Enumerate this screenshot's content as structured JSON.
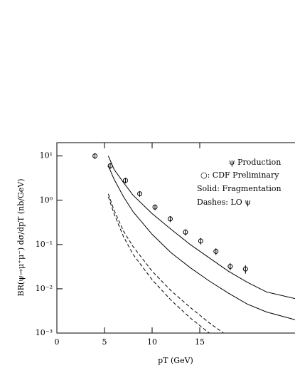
{
  "chart_data": {
    "type": "line",
    "x_label": "pT (GeV)",
    "y_label": "BR(ψ→μ⁺μ⁻)  dσ/dpT (nb/GeV)",
    "annotations": [
      "ψ Production",
      "○: CDF Preliminary",
      "Solid: Fragmentation",
      "Dashes: LO ψ"
    ],
    "xlim": [
      0,
      25
    ],
    "xticks": [
      0,
      5,
      10,
      15
    ],
    "ylim": [
      0.001,
      20
    ],
    "y_log": true,
    "yticks": [
      {
        "value": 10,
        "label": "10¹"
      },
      {
        "value": 1,
        "label": "10⁰"
      },
      {
        "value": 0.1,
        "label": "10⁻¹"
      },
      {
        "value": 0.01,
        "label": "10⁻²"
      },
      {
        "value": 0.001,
        "label": "10⁻³"
      }
    ],
    "color": "#000000",
    "points": {
      "x": [
        4.0,
        5.6,
        7.2,
        8.7,
        10.3,
        11.9,
        13.5,
        15.1,
        16.7,
        18.2,
        19.8
      ],
      "values": [
        10,
        6,
        2.8,
        1.4,
        0.7,
        0.38,
        0.19,
        0.12,
        0.07,
        0.032,
        0.028
      ],
      "errors": [
        1.5,
        0.9,
        0.4,
        0.2,
        0.1,
        0.06,
        0.03,
        0.02,
        0.012,
        0.006,
        0.006
      ]
    },
    "series": [
      {
        "dash": false,
        "x": [
          5.4,
          6,
          7,
          8,
          10,
          12,
          14,
          16,
          18,
          20,
          22,
          25
        ],
        "values": [
          10,
          5,
          2.5,
          1.3,
          0.5,
          0.22,
          0.1,
          0.05,
          0.025,
          0.014,
          0.0085,
          0.006
        ]
      },
      {
        "dash": false,
        "x": [
          5.4,
          6,
          7,
          8,
          10,
          12,
          14,
          16,
          18,
          20,
          22,
          25
        ],
        "values": [
          6,
          3,
          1.2,
          0.55,
          0.17,
          0.065,
          0.03,
          0.015,
          0.008,
          0.0045,
          0.003,
          0.002
        ]
      },
      {
        "dash": true,
        "x": [
          5.4,
          6,
          7,
          8,
          10,
          12,
          14,
          16,
          17.5
        ],
        "values": [
          1.4,
          0.6,
          0.2,
          0.09,
          0.025,
          0.009,
          0.0038,
          0.0017,
          0.001
        ]
      },
      {
        "dash": true,
        "x": [
          5.4,
          6,
          7,
          8,
          10,
          12,
          14,
          16
        ],
        "values": [
          1.2,
          0.5,
          0.15,
          0.06,
          0.016,
          0.0055,
          0.0022,
          0.001
        ]
      }
    ]
  }
}
